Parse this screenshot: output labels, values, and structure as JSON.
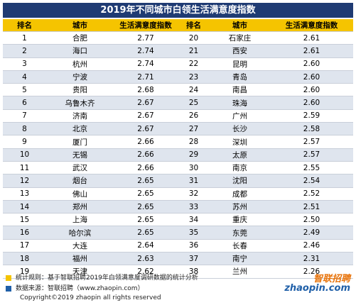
{
  "title": "2019年不同城市白领生活满意度指数",
  "table": {
    "header": [
      "排名",
      "城市",
      "生活满意度指数",
      "排名",
      "城市",
      "生活满意度指数"
    ],
    "rows": [
      [
        "1",
        "合肥",
        "2.77",
        "20",
        "石家庄",
        "2.61"
      ],
      [
        "2",
        "海口",
        "2.74",
        "21",
        "西安",
        "2.61"
      ],
      [
        "3",
        "杭州",
        "2.74",
        "22",
        "昆明",
        "2.60"
      ],
      [
        "4",
        "宁波",
        "2.71",
        "23",
        "青岛",
        "2.60"
      ],
      [
        "5",
        "贵阳",
        "2.68",
        "24",
        "南昌",
        "2.60"
      ],
      [
        "6",
        "乌鲁木齐",
        "2.67",
        "25",
        "珠海",
        "2.60"
      ],
      [
        "7",
        "济南",
        "2.67",
        "26",
        "广州",
        "2.59"
      ],
      [
        "8",
        "北京",
        "2.67",
        "27",
        "长沙",
        "2.58"
      ],
      [
        "9",
        "厦门",
        "2.66",
        "28",
        "深圳",
        "2.57"
      ],
      [
        "10",
        "无锡",
        "2.66",
        "29",
        "太原",
        "2.57"
      ],
      [
        "11",
        "武汉",
        "2.66",
        "30",
        "南京",
        "2.55"
      ],
      [
        "12",
        "烟台",
        "2.65",
        "31",
        "沈阳",
        "2.54"
      ],
      [
        "13",
        "佛山",
        "2.65",
        "32",
        "成都",
        "2.52"
      ],
      [
        "14",
        "郑州",
        "2.65",
        "33",
        "苏州",
        "2.51"
      ],
      [
        "15",
        "上海",
        "2.65",
        "34",
        "重庆",
        "2.50"
      ],
      [
        "16",
        "哈尔滨",
        "2.65",
        "35",
        "东莞",
        "2.49"
      ],
      [
        "17",
        "大连",
        "2.64",
        "36",
        "长春",
        "2.46"
      ],
      [
        "18",
        "福州",
        "2.63",
        "37",
        "南宁",
        "2.31"
      ],
      [
        "19",
        "天津",
        "2.62",
        "38",
        "兰州",
        "2.26"
      ]
    ]
  },
  "notes": [
    "统计规则：基于智联招聘2019年白领满意度调研数据的统计分析",
    "数据来源：智联招聘（www.zhaopin.com）"
  ],
  "copyright": "Copyright©2019 zhaopin all rights reserved",
  "logo": {
    "name": "智联招聘",
    "site": "zhaopin.com"
  }
}
